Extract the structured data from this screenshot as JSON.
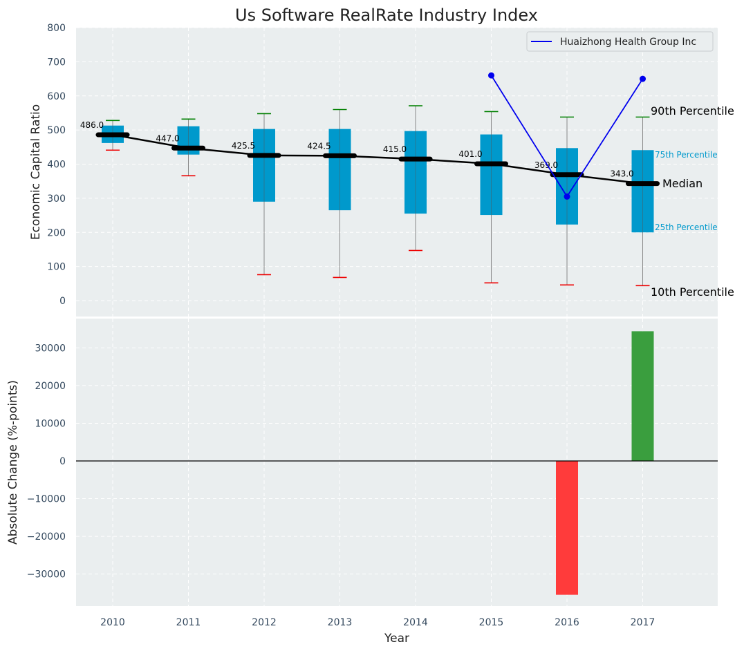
{
  "chart_data": [
    {
      "type": "box",
      "title": "Us Software RealRate Industry Index",
      "xlabel": "",
      "ylabel": "Economic Capital Ratio",
      "ylim": [
        -40,
        800
      ],
      "yticks": [
        0,
        100,
        200,
        300,
        400,
        500,
        600,
        700,
        800
      ],
      "categories": [
        "2010",
        "2011",
        "2012",
        "2013",
        "2014",
        "2015",
        "2016",
        "2017"
      ],
      "boxes": [
        {
          "p10": 441,
          "p25": 462,
          "median": 486.0,
          "p75": 513,
          "p90": 528,
          "median_label": "486.0"
        },
        {
          "p10": 366,
          "p25": 428,
          "median": 447.0,
          "p75": 511,
          "p90": 532,
          "median_label": "447.0"
        },
        {
          "p10": 76,
          "p25": 290,
          "median": 425.5,
          "p75": 503,
          "p90": 548,
          "median_label": "425.5"
        },
        {
          "p10": 68,
          "p25": 265,
          "median": 424.5,
          "p75": 503,
          "p90": 560,
          "median_label": "424.5"
        },
        {
          "p10": 147,
          "p25": 255,
          "median": 415.0,
          "p75": 497,
          "p90": 571,
          "median_label": "415.0"
        },
        {
          "p10": 52,
          "p25": 251,
          "median": 401.0,
          "p75": 487,
          "p90": 554,
          "median_label": "401.0"
        },
        {
          "p10": 46,
          "p25": 223,
          "median": 369.0,
          "p75": 447,
          "p90": 538,
          "median_label": "369.0"
        },
        {
          "p10": 44,
          "p25": 200,
          "median": 343.0,
          "p75": 441,
          "p90": 538,
          "median_label": "343.0"
        }
      ],
      "company_series": {
        "name": "Huaizhong Health Group Inc",
        "color": "#0000ee",
        "points": [
          {
            "x": "2015",
            "y": 660
          },
          {
            "x": "2016",
            "y": 305
          },
          {
            "x": "2017",
            "y": 650
          }
        ]
      },
      "annotations": {
        "p90": "90th Percentile",
        "p75": "75th Percentile",
        "median": "Median",
        "p25": "25th Percentile",
        "p10": "10th Percentile"
      },
      "legend": {
        "location": "top-right",
        "entries": [
          "Huaizhong Health Group Inc"
        ]
      },
      "colors": {
        "box": "#0099cc",
        "median": "#000000",
        "p90_cap": "#008000",
        "p10_cap": "#ee0000",
        "background": "#eaeeef"
      }
    },
    {
      "type": "bar",
      "xlabel": "Year",
      "ylabel": "Absolute Change (%-points)",
      "ylim": [
        -38000,
        38000
      ],
      "yticks": [
        -30000,
        -20000,
        -10000,
        0,
        10000,
        20000,
        30000
      ],
      "ytick_labels": [
        "−30000",
        "−20000",
        "−10000",
        "0",
        "10000",
        "20000",
        "30000"
      ],
      "categories": [
        "2010",
        "2011",
        "2012",
        "2013",
        "2014",
        "2015",
        "2016",
        "2017"
      ],
      "values": [
        null,
        null,
        null,
        null,
        null,
        null,
        -35500,
        34400
      ],
      "colors": {
        "positive": "#3a9e3e",
        "negative": "#ff3b3b",
        "background": "#eaeeef"
      }
    }
  ]
}
